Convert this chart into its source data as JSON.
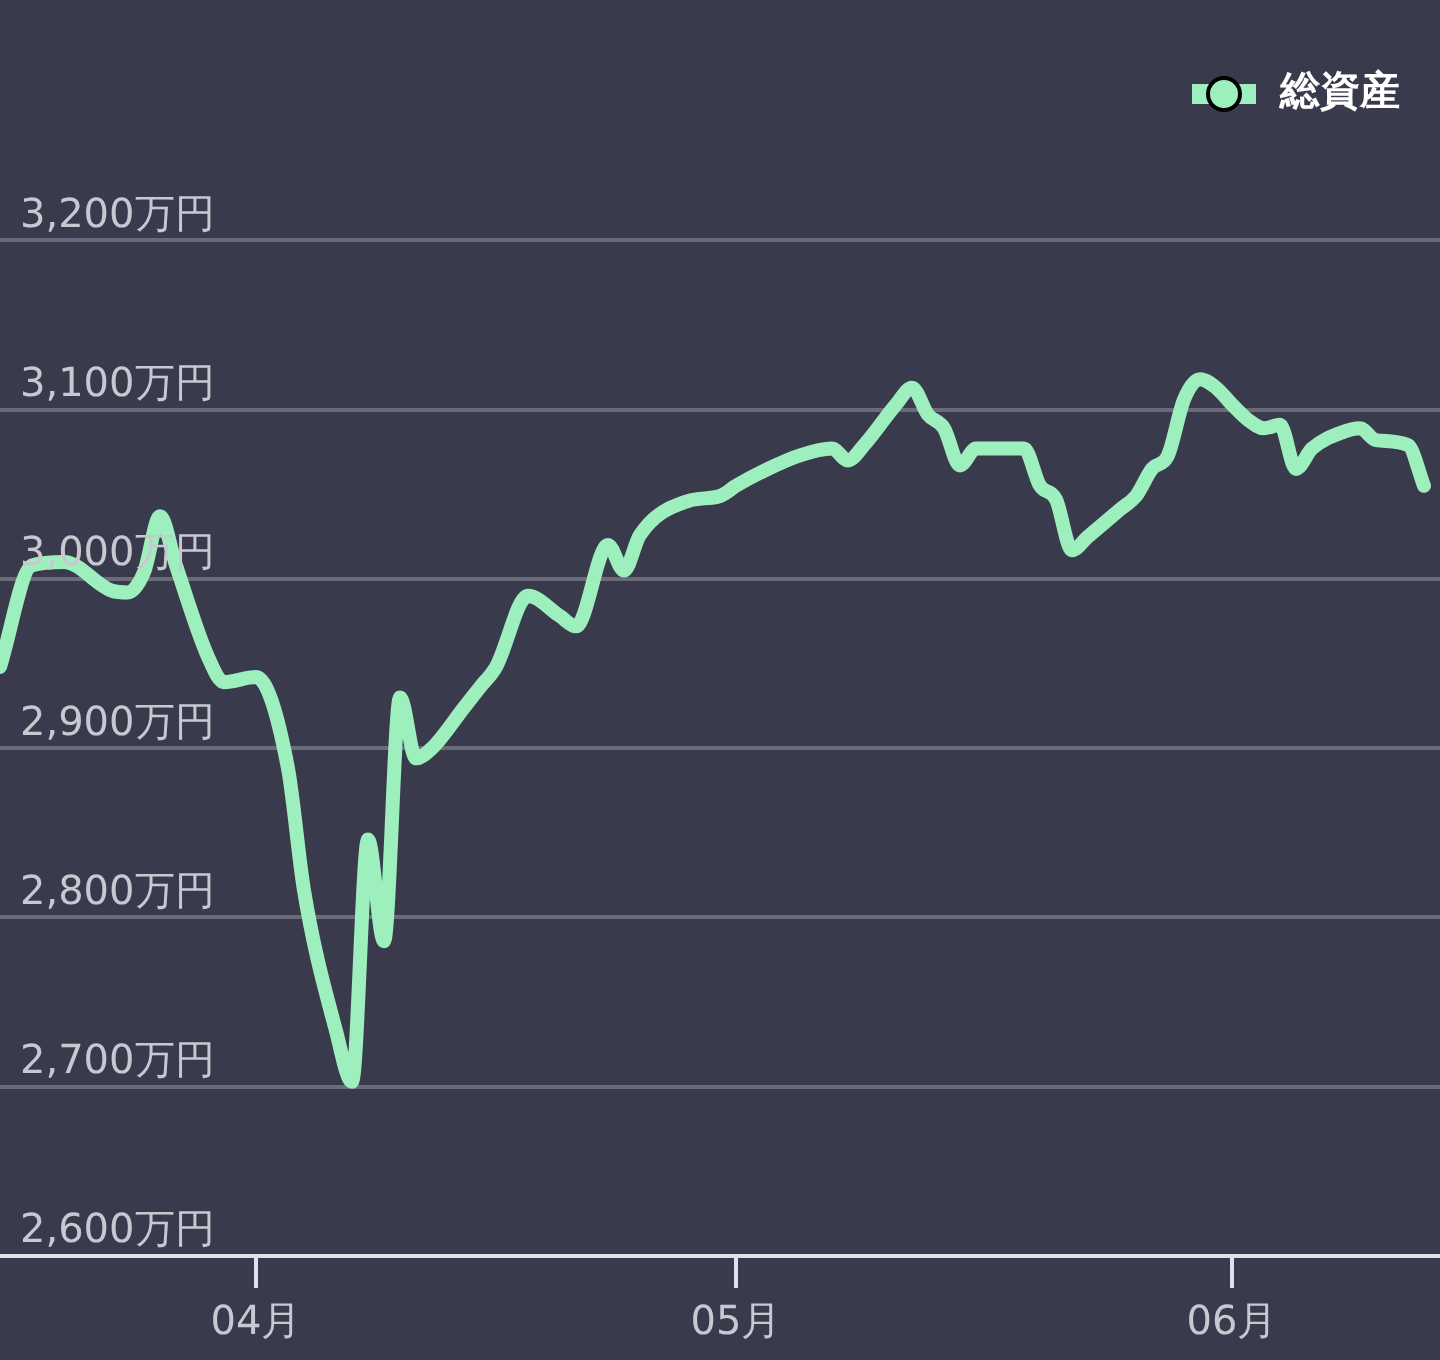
{
  "chart_data": {
    "type": "line",
    "x": [
      "--03-16",
      "--03-18",
      "--03-20",
      "--03-23",
      "--03-24",
      "--03-25",
      "--03-26",
      "--03-27",
      "--03-29",
      "--03-30",
      "--04-01",
      "--04-03",
      "--04-04",
      "--04-06",
      "--04-07",
      "--04-08",
      "--04-09",
      "--04-10",
      "--04-11",
      "--04-12",
      "--04-14",
      "--04-15",
      "--04-16",
      "--04-18",
      "--04-20",
      "--04-21",
      "--04-23",
      "--04-24",
      "--04-25",
      "--04-28",
      "--04-30",
      "--05-01",
      "--05-03",
      "--05-05",
      "--05-07",
      "--05-08",
      "--05-09",
      "--05-11",
      "--05-12",
      "--05-13",
      "--05-14",
      "--05-15",
      "--05-16",
      "--05-19",
      "--05-20",
      "--05-21",
      "--05-22",
      "--05-23",
      "--05-25",
      "--05-26",
      "--05-27",
      "--05-28",
      "--05-29",
      "--05-30",
      "--05-31",
      "--06-01",
      "--06-02",
      "--06-03",
      "--06-04",
      "--06-05",
      "--06-06",
      "--06-08",
      "--06-09",
      "--06-10",
      "--06-12",
      "--06-13"
    ],
    "series": [
      {
        "name": "総資産",
        "color": "#9eefbe",
        "values": [
          2948,
          3008,
          3010,
          2993,
          2992,
          3004,
          3037,
          3008,
          2954,
          2939,
          2942,
          2888,
          2816,
          2733,
          2703,
          2846,
          2786,
          2930,
          2894,
          2900,
          2924,
          2936,
          2948,
          2990,
          2978,
          2972,
          3020,
          3005,
          3026,
          3046,
          3049,
          3055,
          3065,
          3073,
          3077,
          3070,
          3079,
          3103,
          3113,
          3097,
          3089,
          3067,
          3077,
          3077,
          3055,
          3047,
          3017,
          3025,
          3041,
          3049,
          3065,
          3073,
          3106,
          3118,
          3113,
          3103,
          3094,
          3089,
          3091,
          3065,
          3077,
          3087,
          3089,
          3082,
          3079,
          3055
        ]
      }
    ],
    "xlim": [
      "--03-16",
      "--06-14"
    ],
    "xticks": [
      {
        "value": "--04-01",
        "label": "04月"
      },
      {
        "value": "--05-01",
        "label": "05月"
      },
      {
        "value": "--06-01",
        "label": "06月"
      }
    ],
    "ylim": [
      2600,
      3342
    ],
    "yticks": [
      {
        "value": 2600,
        "label": "2,600万円"
      },
      {
        "value": 2700,
        "label": "2,700万円"
      },
      {
        "value": 2800,
        "label": "2,800万円"
      },
      {
        "value": 2900,
        "label": "2,900万円"
      },
      {
        "value": 3000,
        "label": "3,000万円"
      },
      {
        "value": 3100,
        "label": "3,100万円"
      },
      {
        "value": 3200,
        "label": "3,200万円"
      }
    ],
    "grid": "y",
    "legend": "top right",
    "marker": "none",
    "line_style": "solid"
  }
}
